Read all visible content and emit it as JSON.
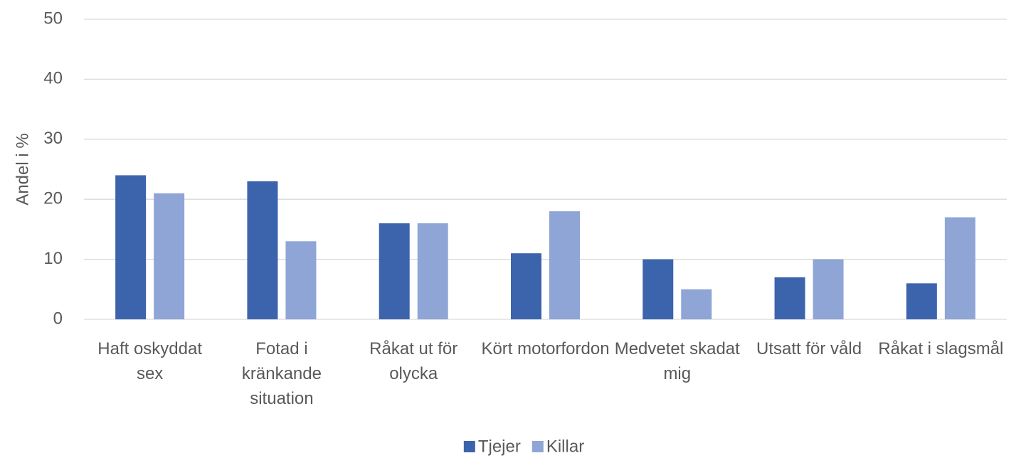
{
  "chart_data": {
    "type": "bar",
    "ylabel": "Andel i %",
    "categories": [
      "Haft oskyddat sex",
      "Fotad i kränkande situation",
      "Råkat ut för olycka",
      "Kört motorfordon",
      "Medvetet skadat mig",
      "Utsatt för våld",
      "Råkat i slagsmål"
    ],
    "series": [
      {
        "name": "Tjejer",
        "color": "#3c64ad",
        "values": [
          24,
          23,
          16,
          11,
          10,
          7,
          6
        ]
      },
      {
        "name": "Killar",
        "color": "#8fa5d6",
        "values": [
          21,
          13,
          16,
          18,
          5,
          10,
          17
        ]
      }
    ],
    "ylim": [
      0,
      50
    ],
    "yticks": [
      0,
      10,
      20,
      30,
      40,
      50
    ],
    "grid": true,
    "legend": "bottom"
  }
}
